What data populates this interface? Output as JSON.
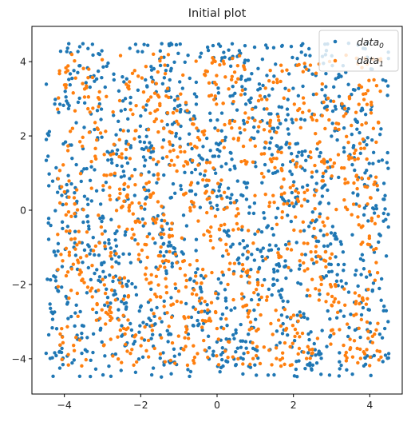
{
  "chart_data": {
    "type": "scatter",
    "title": "Initial plot",
    "xlabel": "",
    "ylabel": "",
    "xlim": [
      -4.85,
      4.85
    ],
    "ylim": [
      -4.95,
      4.95
    ],
    "x_ticks": [
      -4,
      -2,
      0,
      2,
      4
    ],
    "y_ticks": [
      -4,
      -2,
      0,
      2,
      4
    ],
    "x_tick_labels": [
      "−4",
      "−2",
      "0",
      "2",
      "4"
    ],
    "y_tick_labels": [
      "−4",
      "−2",
      "0",
      "2",
      "4"
    ],
    "grid": false,
    "legend_position": "top-right",
    "colors": {
      "series_0": "#1f77b4",
      "series_1": "#ff7f0e",
      "axis": "#000000"
    },
    "series": [
      {
        "name": "data_0",
        "legend_base": "data",
        "legend_sub": "0",
        "color": "#1f77b4",
        "distribution": "approximately uniform over the square",
        "x_range": [
          -4.5,
          4.5
        ],
        "y_range": [
          -4.5,
          4.5
        ],
        "approx_count": 1800
      },
      {
        "name": "data_1",
        "legend_base": "data",
        "legend_sub": "1",
        "color": "#ff7f0e",
        "distribution": "approximately uniform over the square, interleaved with data_0",
        "x_range": [
          -4.2,
          4.3
        ],
        "y_range": [
          -4.2,
          4.2
        ],
        "approx_count": 1400
      }
    ]
  }
}
